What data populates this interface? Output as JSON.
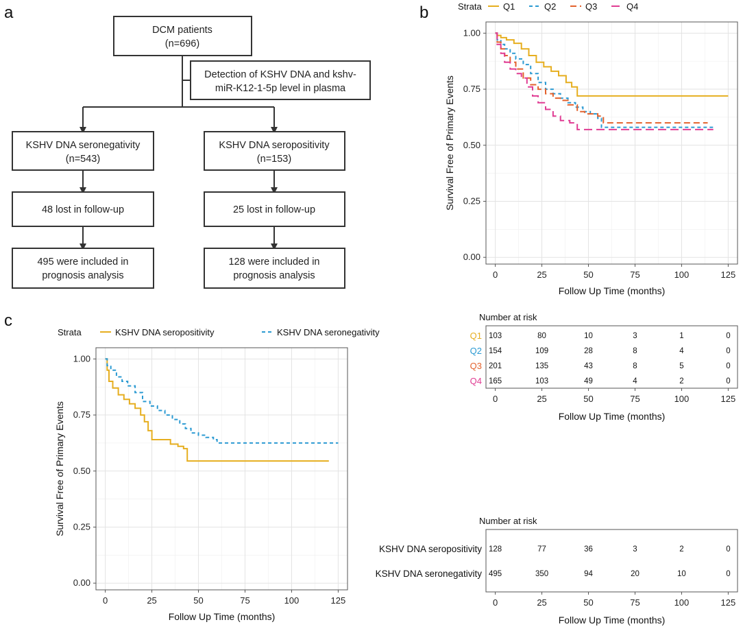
{
  "panel_letters": {
    "a": "a",
    "b": "b",
    "c": "c"
  },
  "flowchart": {
    "root": [
      "DCM patients",
      "(n=696)"
    ],
    "detection": [
      "Detection of KSHV DNA and kshv-",
      "miR-K12-1-5p level in plasma"
    ],
    "neg": [
      "KSHV DNA seronegativity",
      "(n=543)"
    ],
    "pos": [
      "KSHV DNA seropositivity",
      "(n=153)"
    ],
    "neg_lost": [
      "48 lost in follow-up"
    ],
    "pos_lost": [
      "25 lost in follow-up"
    ],
    "neg_incl": [
      "495 were included in",
      "prognosis analysis"
    ],
    "pos_incl": [
      "128 were included in",
      "prognosis analysis"
    ],
    "colors": {
      "box_stroke": "#333333",
      "arrow": "#333333"
    }
  },
  "chart_data": [
    {
      "id": "b",
      "type": "line",
      "legend_title": "Strata",
      "legend_position": "top",
      "xlabel": "Follow Up Time (months)",
      "ylabel": "Survival Free of Primary Events",
      "xlim": [
        -5,
        130
      ],
      "ylim": [
        -0.03,
        1.05
      ],
      "xticks": [
        0,
        25,
        50,
        75,
        100,
        125
      ],
      "yticks": [
        0.0,
        0.25,
        0.5,
        0.75,
        1.0
      ],
      "ytick_labels": [
        "0.00",
        "0.25",
        "0.50",
        "0.75",
        "1.00"
      ],
      "grid": true,
      "series": [
        {
          "name": "Q1",
          "color": "#E6AE1F",
          "dash": "",
          "points": [
            [
              0,
              1.0
            ],
            [
              1,
              0.99
            ],
            [
              3,
              0.98
            ],
            [
              6,
              0.97
            ],
            [
              10,
              0.955
            ],
            [
              14,
              0.93
            ],
            [
              18,
              0.9
            ],
            [
              22,
              0.87
            ],
            [
              26,
              0.85
            ],
            [
              30,
              0.83
            ],
            [
              34,
              0.81
            ],
            [
              38,
              0.78
            ],
            [
              41,
              0.76
            ],
            [
              44,
              0.72
            ],
            [
              125,
              0.72
            ]
          ]
        },
        {
          "name": "Q2",
          "color": "#2B9AD2",
          "dash": "5,4",
          "points": [
            [
              0,
              1.0
            ],
            [
              1,
              0.97
            ],
            [
              3,
              0.95
            ],
            [
              5,
              0.93
            ],
            [
              8,
              0.91
            ],
            [
              11,
              0.885
            ],
            [
              15,
              0.86
            ],
            [
              19,
              0.82
            ],
            [
              23,
              0.78
            ],
            [
              27,
              0.75
            ],
            [
              31,
              0.73
            ],
            [
              35,
              0.71
            ],
            [
              39,
              0.69
            ],
            [
              43,
              0.67
            ],
            [
              47,
              0.65
            ],
            [
              51,
              0.64
            ],
            [
              55,
              0.62
            ],
            [
              57,
              0.58
            ],
            [
              118,
              0.58
            ]
          ]
        },
        {
          "name": "Q3",
          "color": "#E3622D",
          "dash": "9,5",
          "points": [
            [
              0,
              1.0
            ],
            [
              1,
              0.96
            ],
            [
              3,
              0.93
            ],
            [
              5,
              0.9
            ],
            [
              8,
              0.87
            ],
            [
              11,
              0.84
            ],
            [
              15,
              0.8
            ],
            [
              19,
              0.77
            ],
            [
              23,
              0.75
            ],
            [
              27,
              0.73
            ],
            [
              31,
              0.71
            ],
            [
              35,
              0.7
            ],
            [
              39,
              0.68
            ],
            [
              44,
              0.65
            ],
            [
              48,
              0.64
            ],
            [
              52,
              0.64
            ],
            [
              55,
              0.63
            ],
            [
              58,
              0.6
            ],
            [
              114,
              0.6
            ]
          ]
        },
        {
          "name": "Q4",
          "color": "#E03C93",
          "dash": "12,6",
          "points": [
            [
              0,
              1.0
            ],
            [
              1,
              0.95
            ],
            [
              3,
              0.91
            ],
            [
              5,
              0.87
            ],
            [
              8,
              0.84
            ],
            [
              11,
              0.82
            ],
            [
              14,
              0.8
            ],
            [
              17,
              0.76
            ],
            [
              20,
              0.72
            ],
            [
              23,
              0.69
            ],
            [
              27,
              0.66
            ],
            [
              31,
              0.63
            ],
            [
              35,
              0.61
            ],
            [
              40,
              0.6
            ],
            [
              44,
              0.57
            ],
            [
              117,
              0.57
            ]
          ]
        }
      ]
    },
    {
      "id": "b_risk",
      "type": "table",
      "title": "Number at risk",
      "xlabel": "Follow Up Time (months)",
      "xticks": [
        0,
        25,
        50,
        75,
        100,
        125
      ],
      "rows": [
        {
          "label": "Q1",
          "color": "#E6AE1F",
          "values": [
            103,
            80,
            10,
            3,
            1,
            0
          ]
        },
        {
          "label": "Q2",
          "color": "#2B9AD2",
          "values": [
            154,
            109,
            28,
            8,
            4,
            0
          ]
        },
        {
          "label": "Q3",
          "color": "#E3622D",
          "values": [
            201,
            135,
            43,
            8,
            5,
            0
          ]
        },
        {
          "label": "Q4",
          "color": "#E03C93",
          "values": [
            165,
            103,
            49,
            4,
            2,
            0
          ]
        }
      ]
    },
    {
      "id": "c",
      "type": "line",
      "legend_title": "Strata",
      "legend_position": "top",
      "xlabel": "Follow Up Time (months)",
      "ylabel": "Survival Free of Primary Events",
      "xlim": [
        -5,
        130
      ],
      "ylim": [
        -0.03,
        1.05
      ],
      "xticks": [
        0,
        25,
        50,
        75,
        100,
        125
      ],
      "yticks": [
        0.0,
        0.25,
        0.5,
        0.75,
        1.0
      ],
      "ytick_labels": [
        "0.00",
        "0.25",
        "0.50",
        "0.75",
        "1.00"
      ],
      "grid": true,
      "series": [
        {
          "name": "KSHV DNA seropositivity",
          "color": "#E6AE1F",
          "dash": "",
          "points": [
            [
              0,
              1.0
            ],
            [
              1,
              0.95
            ],
            [
              2,
              0.9
            ],
            [
              4,
              0.87
            ],
            [
              7,
              0.84
            ],
            [
              10,
              0.82
            ],
            [
              13,
              0.8
            ],
            [
              16,
              0.78
            ],
            [
              19,
              0.75
            ],
            [
              21,
              0.72
            ],
            [
              23,
              0.68
            ],
            [
              25,
              0.64
            ],
            [
              32,
              0.64
            ],
            [
              35,
              0.62
            ],
            [
              39,
              0.61
            ],
            [
              42,
              0.6
            ],
            [
              44,
              0.545
            ],
            [
              120,
              0.545
            ]
          ]
        },
        {
          "name": "KSHV DNA seronegativity",
          "color": "#2B9AD2",
          "dash": "5,4",
          "points": [
            [
              0,
              1.0
            ],
            [
              1,
              0.97
            ],
            [
              3,
              0.95
            ],
            [
              6,
              0.92
            ],
            [
              9,
              0.9
            ],
            [
              12,
              0.88
            ],
            [
              16,
              0.85
            ],
            [
              20,
              0.81
            ],
            [
              24,
              0.79
            ],
            [
              28,
              0.77
            ],
            [
              32,
              0.75
            ],
            [
              36,
              0.73
            ],
            [
              40,
              0.71
            ],
            [
              43,
              0.69
            ],
            [
              46,
              0.67
            ],
            [
              50,
              0.66
            ],
            [
              54,
              0.65
            ],
            [
              58,
              0.64
            ],
            [
              60,
              0.625
            ],
            [
              125,
              0.625
            ]
          ]
        }
      ]
    },
    {
      "id": "c_risk",
      "type": "table",
      "title": "Number at risk",
      "xlabel": "Follow Up Time (months)",
      "xticks": [
        0,
        25,
        50,
        75,
        100,
        125
      ],
      "rows": [
        {
          "label": "KSHV DNA seropositivity",
          "color": "#111111",
          "values": [
            128,
            77,
            36,
            3,
            2,
            0
          ]
        },
        {
          "label": "KSHV DNA seronegativity",
          "color": "#111111",
          "values": [
            495,
            350,
            94,
            20,
            10,
            0
          ]
        }
      ]
    }
  ]
}
